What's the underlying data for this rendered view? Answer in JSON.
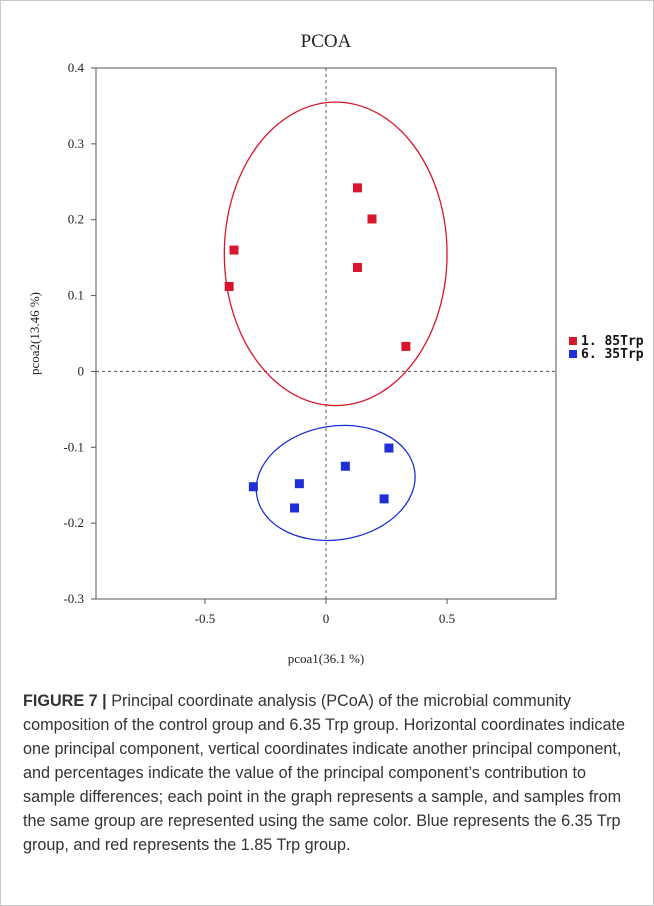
{
  "chart_data": {
    "type": "scatter",
    "title": "PCOA",
    "xlabel": "pcoa1(36.1 %)",
    "ylabel": "pcoa2(13.46 %)",
    "xlim": [
      -0.95,
      0.95
    ],
    "ylim": [
      -0.3,
      0.4
    ],
    "xticks": [
      -0.5,
      0,
      0.5
    ],
    "xtick_labels": [
      "-0.5",
      "0",
      "0.5"
    ],
    "yticks": [
      -0.3,
      -0.2,
      -0.1,
      0,
      0.1,
      0.2,
      0.3,
      0.4
    ],
    "ytick_labels": [
      "-0.3",
      "-0.2",
      "-0.1",
      "0",
      "0.1",
      "0.2",
      "0.3",
      "0.4"
    ],
    "grid": false,
    "zero_lines": "dashed",
    "legend_position": "right",
    "series": [
      {
        "name": "1.85Trp",
        "label": "1. 85Trp",
        "color": "#d9162d",
        "points": [
          {
            "x": -0.38,
            "y": 0.16
          },
          {
            "x": -0.4,
            "y": 0.112
          },
          {
            "x": 0.13,
            "y": 0.242
          },
          {
            "x": 0.19,
            "y": 0.201
          },
          {
            "x": 0.13,
            "y": 0.137
          },
          {
            "x": 0.33,
            "y": 0.033
          }
        ],
        "ellipse": {
          "cx": 0.04,
          "cy": 0.155,
          "rx": 0.92,
          "ry": 0.2,
          "rotation_deg": 0
        }
      },
      {
        "name": "6.35Trp",
        "label": "6. 35Trp",
        "color": "#1f2fd6",
        "points": [
          {
            "x": -0.3,
            "y": -0.152
          },
          {
            "x": -0.11,
            "y": -0.148
          },
          {
            "x": -0.13,
            "y": -0.18
          },
          {
            "x": 0.08,
            "y": -0.125
          },
          {
            "x": 0.26,
            "y": -0.101
          },
          {
            "x": 0.24,
            "y": -0.168
          }
        ],
        "ellipse": {
          "cx": 0.04,
          "cy": -0.147,
          "rx": 0.66,
          "ry": 0.075,
          "rotation_deg": 9
        }
      }
    ]
  },
  "caption": {
    "label": "FIGURE 7",
    "separator": " | ",
    "text": "Principal coordinate analysis (PCoA) of the microbial community composition of the control group and 6.35 Trp group. Horizontal coordinates indicate one principal component, vertical coordinates indicate another principal component, and percentages indicate the value of the principal component’s contribution to sample differences; each point in the graph represents a sample, and samples from the same group are represented using the same color. Blue represents the 6.35 Trp group, and red represents the 1.85 Trp group."
  }
}
